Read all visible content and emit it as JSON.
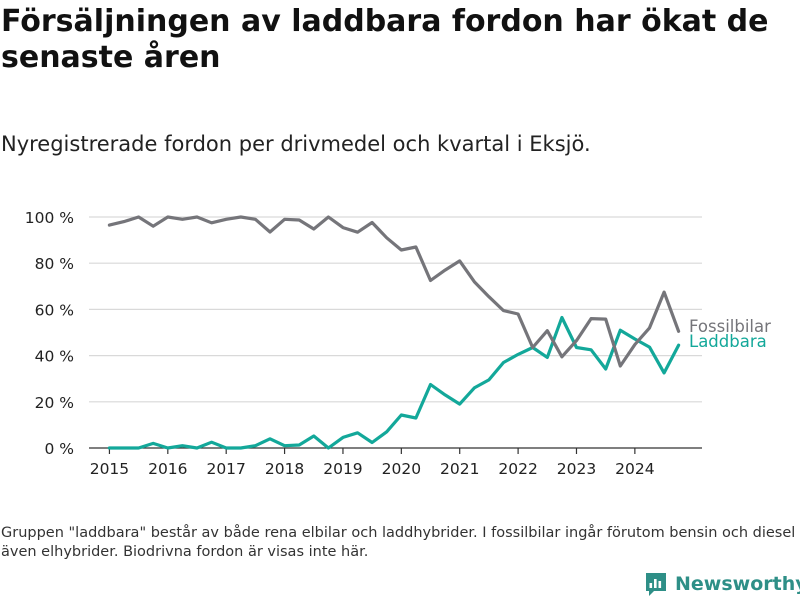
{
  "page": {
    "title": "Försäljningen av laddbara fordon har ökat de senaste åren",
    "subtitle": "Nyregistrerade fordon per drivmedel och kvartal i Eksjö.",
    "note": "Gruppen \"laddbara\" består av både rena elbilar och laddhybrider. I fossilbilar ingår förutom bensin och diesel även elhybrider. Biodrivna fordon är visas inte här.",
    "brand": "Newsworthy"
  },
  "colors": {
    "fossil": "#75757a",
    "laddbara": "#13a89a",
    "grid": "#d9d9d9",
    "axis": "#333333",
    "brand": "#2e8f87"
  },
  "chart_data": {
    "type": "line",
    "title": "Försäljningen av laddbara fordon har ökat de senaste åren",
    "subtitle": "Nyregistrerade fordon per drivmedel och kvartal i Eksjö.",
    "xlabel": "",
    "ylabel": "",
    "ylim": [
      0,
      100
    ],
    "xlim": [
      2014.65,
      2025.15
    ],
    "y_ticks": [
      0,
      20,
      40,
      60,
      80,
      100
    ],
    "y_tick_labels": [
      "0 %",
      "20 %",
      "40 %",
      "60 %",
      "80 %",
      "100 %"
    ],
    "x_ticks": [
      2015,
      2016,
      2017,
      2018,
      2019,
      2020,
      2021,
      2022,
      2023,
      2024
    ],
    "x_tick_labels": [
      "2015",
      "2016",
      "2017",
      "2018",
      "2019",
      "2020",
      "2021",
      "2022",
      "2023",
      "2024"
    ],
    "grid": true,
    "legend": "inline-right",
    "x": [
      2015.0,
      2015.25,
      2015.5,
      2015.75,
      2016.0,
      2016.25,
      2016.5,
      2016.75,
      2017.0,
      2017.25,
      2017.5,
      2017.75,
      2018.0,
      2018.25,
      2018.5,
      2018.75,
      2019.0,
      2019.25,
      2019.5,
      2019.75,
      2020.0,
      2020.25,
      2020.5,
      2020.75,
      2021.0,
      2021.25,
      2021.5,
      2021.75,
      2022.0,
      2022.25,
      2022.5,
      2022.75,
      2023.0,
      2023.25,
      2023.5,
      2023.75,
      2024.0,
      2024.25,
      2024.5,
      2024.75
    ],
    "series": [
      {
        "name": "Fossilbilar",
        "values": [
          96.5,
          98,
          100,
          96,
          100,
          99,
          100,
          97.5,
          99,
          100,
          99,
          93.5,
          99,
          98.7,
          94.8,
          100,
          95.4,
          93.4,
          97.6,
          91,
          85.7,
          87,
          72.5,
          77,
          81,
          72,
          65.5,
          59.5,
          58,
          43.5,
          50.8,
          39.5,
          46.5,
          56,
          55.8,
          35.5,
          44.8,
          52,
          67.5,
          50.5
        ]
      },
      {
        "name": "Laddbara",
        "values": [
          0,
          0,
          0,
          2,
          0,
          1,
          0,
          2.5,
          0,
          0,
          1,
          4,
          1,
          1.3,
          5.2,
          0,
          4.6,
          6.6,
          2.4,
          7,
          14.3,
          13,
          27.5,
          23,
          19,
          26,
          29.5,
          37,
          40.5,
          43.5,
          39.2,
          56.5,
          43.5,
          42.5,
          34.2,
          51,
          47.2,
          43.7,
          32.5,
          44.5
        ]
      }
    ]
  }
}
